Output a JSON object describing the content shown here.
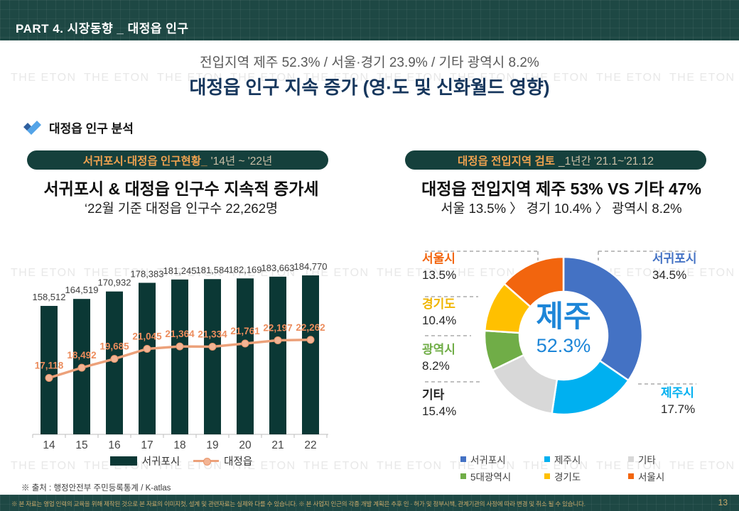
{
  "header": {
    "title": "PART 4. 시장동향 _ 대정읍 인구"
  },
  "headline": {
    "subtitle": "전입지역 제주 52.3% / 서울·경기 23.9%  / 기타 광역시 8.2%",
    "title": "대정읍 인구 지속 증가 (영·도 및 신화월드 영향)"
  },
  "section": {
    "label": "대정읍 인구 분석"
  },
  "watermark": {
    "text": "THE ETON"
  },
  "left_panel": {
    "badge_highlight": "서귀포시·대정읍 인구현황_",
    "badge_period": "'14년 ~ '22년",
    "title": "서귀포시 & 대정읍 인구수 지속적 증가세",
    "subtitle": "‘22월 기준 대정읍 인구수 22,262명"
  },
  "right_panel": {
    "badge_highlight": "대정읍 전입지역 검토",
    "badge_period": "_1년간 '21.1~'21.12",
    "title": "대정읍 전입지역 제주 53% VS 기타 47%",
    "subtitle": "서울 13.5% 〉 경기 10.4% 〉 광역시 8.2%"
  },
  "chart_data": [
    {
      "type": "bar",
      "title": "서귀포시·대정읍 인구현황 '14년~'22년",
      "categories": [
        "14",
        "15",
        "16",
        "17",
        "18",
        "19",
        "20",
        "21",
        "22"
      ],
      "series": [
        {
          "name": "서귀포시",
          "type": "bar",
          "color": "#0b3835",
          "values": [
            158512,
            164519,
            170932,
            178383,
            181245,
            181584,
            182169,
            183663,
            184770
          ]
        },
        {
          "name": "대정읍",
          "type": "line",
          "color": "#eca17a",
          "values": [
            17118,
            18492,
            19685,
            21045,
            21364,
            21334,
            21761,
            22197,
            22262
          ]
        }
      ],
      "bar_axis_min": 48000,
      "line_axis_min": 9500,
      "grid": false,
      "legend_position": "bottom"
    },
    {
      "type": "pie",
      "donut": true,
      "title": "대정읍 전입지역 검토 1년간 '21.1~'21.12",
      "center_label": "제주",
      "center_value": "52.3%",
      "center_color": "#1d86d8",
      "slices": [
        {
          "name": "서귀포시",
          "value": 34.5,
          "color": "#4472c4"
        },
        {
          "name": "제주시",
          "value": 17.7,
          "color": "#00b0f0"
        },
        {
          "name": "기타",
          "value": 15.4,
          "color": "#d8d8d8"
        },
        {
          "name": "5대광역시",
          "value": 8.2,
          "color": "#70ad47"
        },
        {
          "name": "경기도",
          "value": 10.4,
          "color": "#ffc000"
        },
        {
          "name": "서울시",
          "value": 13.5,
          "color": "#f2650e"
        }
      ],
      "callouts": [
        {
          "label": "서울시",
          "pct": "13.5%",
          "color": "#f2650e",
          "pos": "left-1"
        },
        {
          "label": "경기도",
          "pct": "10.4%",
          "color": "#f0b500",
          "pos": "left-2"
        },
        {
          "label": "광역시",
          "pct": "8.2%",
          "color": "#70ad47",
          "pos": "left-3"
        },
        {
          "label": "기타",
          "pct": "15.4%",
          "color": "#262626",
          "pos": "left-4"
        },
        {
          "label": "서귀포시",
          "pct": "34.5%",
          "color": "#4472c4",
          "pos": "right-1"
        },
        {
          "label": "제주시",
          "pct": "17.7%",
          "color": "#00b0f0",
          "pos": "right-2"
        }
      ],
      "legend": [
        {
          "name": "서귀포시",
          "color": "#4472c4"
        },
        {
          "name": "제주시",
          "color": "#00b0f0"
        },
        {
          "name": "기타",
          "color": "#d8d8d8"
        },
        {
          "name": "5대광역시",
          "color": "#70ad47"
        },
        {
          "name": "경기도",
          "color": "#ffc000"
        },
        {
          "name": "서울시",
          "color": "#f2650e"
        }
      ],
      "legend_position": "bottom"
    }
  ],
  "source": "※ 출처 : 행정안전부 주민등록통계 / K-atlas",
  "footer": {
    "disclaimer": "※ 본 자료는 영업 인력의 교육을 위해 제작된 것으로 본 자료의 이미지컷, 설계 및 관련자료는 실제와 다를 수 있습니다.  ※ 본 사업지 인근의 각종 개발 계획은 추후 인 · 허가 및 정부시책, 관계기관의 사정에 따라 변경 및 취소 될 수 있습니다.",
    "page": "13"
  }
}
